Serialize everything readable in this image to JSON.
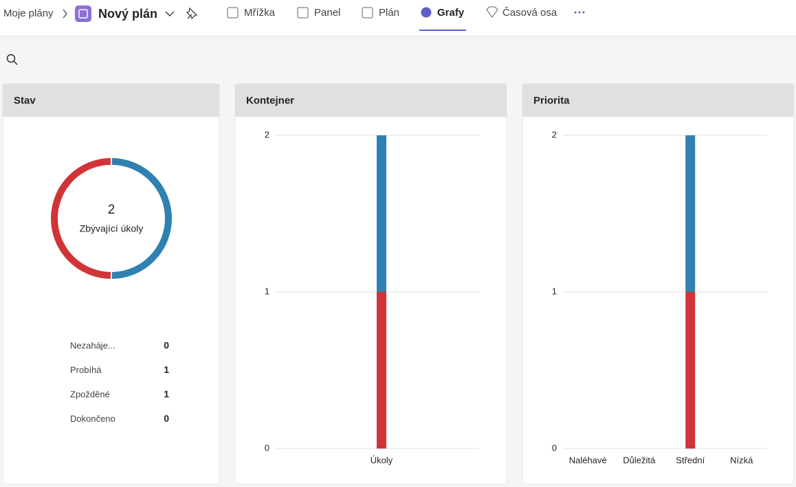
{
  "nav": {
    "breadcrumb": "Moje plány",
    "plan_name": "Nový plán",
    "tabs": [
      "Mřížka",
      "Panel",
      "Plán",
      "Grafy",
      "Časová osa"
    ]
  },
  "chart_data": [
    {
      "type": "donut",
      "title": "Stav",
      "center_value": 2,
      "center_label": "Zbývající úkoly",
      "categories": [
        "Nezaháje...",
        "Probíhá",
        "Zpožděné",
        "Dokončeno"
      ],
      "values": [
        0,
        1,
        1,
        0
      ],
      "colors": [
        "#8a8886",
        "#2f81b2",
        "#d13438",
        "#3aa55d"
      ]
    },
    {
      "type": "bar",
      "title": "Kontejner",
      "categories": [
        "Úkoly"
      ],
      "series": [
        {
          "color": "#d13438",
          "values": [
            1
          ]
        },
        {
          "color": "#2f81b2",
          "values": [
            1
          ]
        }
      ],
      "ylim": [
        0,
        2
      ],
      "yticks": [
        0,
        1,
        2
      ],
      "grid": true
    },
    {
      "type": "bar",
      "title": "Priorita",
      "categories": [
        "Naléhavé",
        "Důležitá",
        "Střední",
        "Nízká"
      ],
      "series": [
        {
          "color": "#d13438",
          "values": [
            0,
            0,
            1,
            0
          ]
        },
        {
          "color": "#2f81b2",
          "values": [
            0,
            0,
            1,
            0
          ]
        }
      ],
      "ylim": [
        0,
        2
      ],
      "yticks": [
        0,
        1,
        2
      ],
      "grid": true
    }
  ]
}
